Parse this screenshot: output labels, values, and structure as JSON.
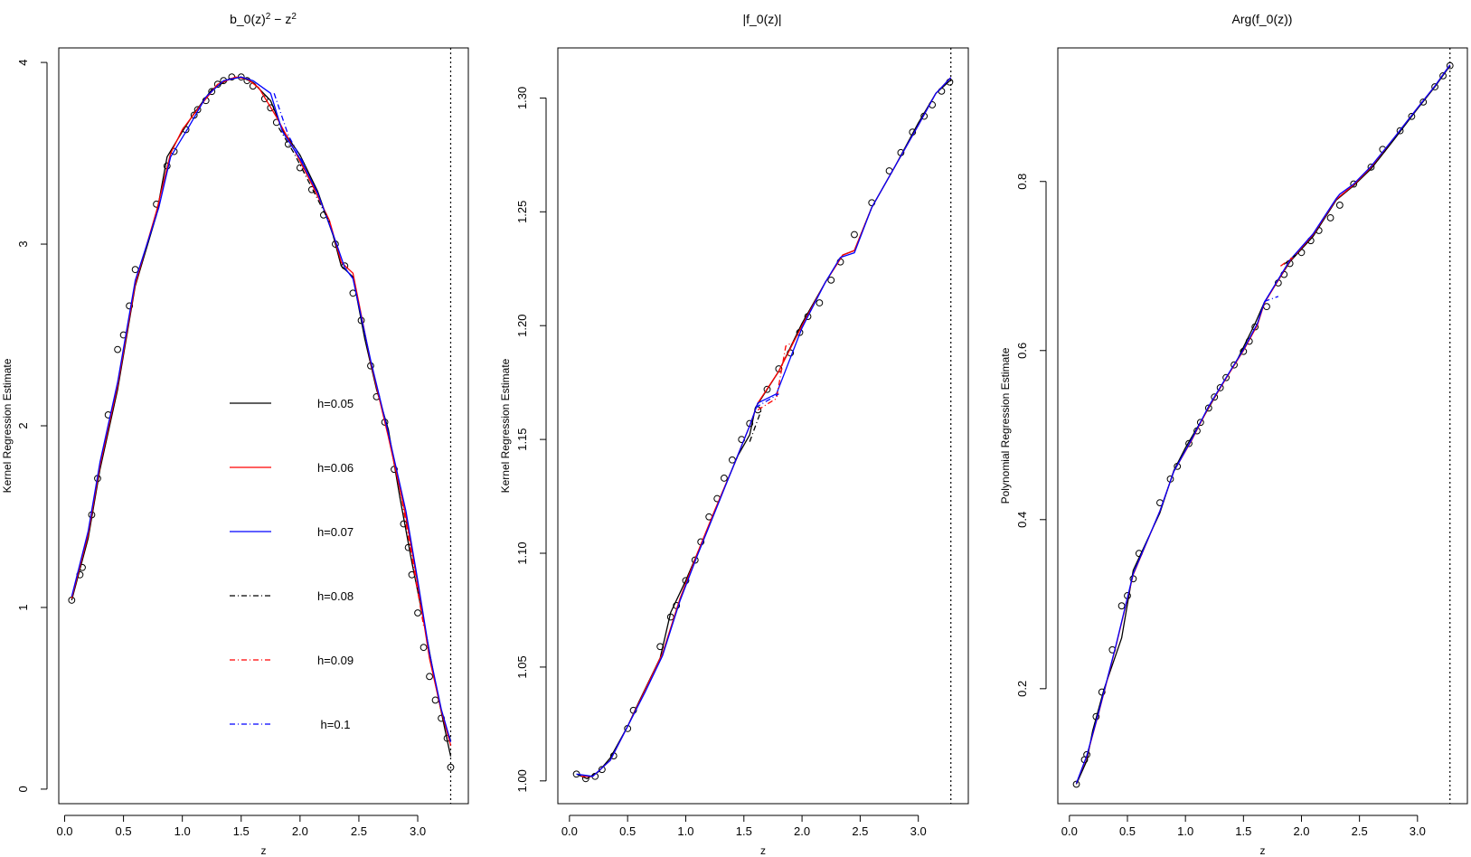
{
  "colors": {
    "h005": "#000000",
    "h006": "#ff0000",
    "h007": "#0000ff",
    "h008": "#000000",
    "h009": "#ff0000",
    "h01": "#0000ff",
    "vline": "#000000"
  },
  "chart_data": [
    {
      "type": "line",
      "title_parts": [
        "b_0(z)",
        "2",
        " − z",
        "2"
      ],
      "xlabel": "z",
      "ylabel": "Kernel Regression Estimate",
      "xlim": [
        -0.05,
        3.43
      ],
      "ylim": [
        -0.08,
        4.08
      ],
      "xticks": [
        0.0,
        0.5,
        1.0,
        1.5,
        2.0,
        2.5,
        3.0
      ],
      "xtick_labels": [
        "0.0",
        "0.5",
        "1.0",
        "1.5",
        "2.0",
        "2.5",
        "3.0"
      ],
      "yticks": [
        0,
        1,
        2,
        3,
        4
      ],
      "ytick_labels": [
        "0",
        "1",
        "2",
        "3",
        "4"
      ],
      "vline_x": 3.28,
      "legend": {
        "entries": [
          {
            "label": "h=0.05",
            "color": "#000000",
            "style": "solid"
          },
          {
            "label": "h=0.06",
            "color": "#ff0000",
            "style": "solid"
          },
          {
            "label": "h=0.07",
            "color": "#0000ff",
            "style": "solid"
          },
          {
            "label": "h=0.08",
            "color": "#000000",
            "style": "dashdot"
          },
          {
            "label": "h=0.09",
            "color": "#ff0000",
            "style": "dashdot"
          },
          {
            "label": "h=0.1",
            "color": "#0000ff",
            "style": "dashdot"
          }
        ]
      },
      "points": {
        "x": [
          0.06,
          0.13,
          0.15,
          0.23,
          0.28,
          0.37,
          0.45,
          0.5,
          0.55,
          0.6,
          0.78,
          0.87,
          0.93,
          1.03,
          1.1,
          1.13,
          1.2,
          1.25,
          1.3,
          1.35,
          1.42,
          1.5,
          1.55,
          1.6,
          1.7,
          1.75,
          1.8,
          1.9,
          2.0,
          2.1,
          2.2,
          2.3,
          2.38,
          2.45,
          2.52,
          2.6,
          2.65,
          2.72,
          2.8,
          2.88,
          2.92,
          2.95,
          3.0,
          3.05,
          3.1,
          3.15,
          3.2,
          3.25,
          3.28
        ],
        "y": [
          1.04,
          1.18,
          1.22,
          1.51,
          1.71,
          2.06,
          2.42,
          2.5,
          2.66,
          2.86,
          3.22,
          3.43,
          3.51,
          3.63,
          3.71,
          3.74,
          3.79,
          3.84,
          3.88,
          3.9,
          3.92,
          3.92,
          3.9,
          3.87,
          3.8,
          3.75,
          3.67,
          3.55,
          3.42,
          3.3,
          3.16,
          3.0,
          2.88,
          2.73,
          2.58,
          2.33,
          2.16,
          2.02,
          1.76,
          1.46,
          1.33,
          1.18,
          0.97,
          0.78,
          0.62,
          0.49,
          0.39,
          0.28,
          0.12
        ]
      },
      "series": [
        {
          "name": "h=0.05",
          "color": "#000000",
          "dash": "",
          "x": [
            0.06,
            0.2,
            0.3,
            0.45,
            0.6,
            0.78,
            0.87,
            1.0,
            1.1,
            1.25,
            1.4,
            1.5,
            1.6,
            1.75,
            1.85,
            2.0,
            2.15,
            2.28,
            2.35,
            2.45,
            2.55,
            2.65,
            2.75,
            2.85,
            2.95,
            3.05,
            3.15,
            3.25,
            3.28
          ],
          "y": [
            1.04,
            1.38,
            1.76,
            2.2,
            2.77,
            3.16,
            3.48,
            3.62,
            3.72,
            3.85,
            3.91,
            3.92,
            3.89,
            3.79,
            3.63,
            3.49,
            3.29,
            3.05,
            2.88,
            2.82,
            2.48,
            2.2,
            1.98,
            1.6,
            1.25,
            0.93,
            0.58,
            0.27,
            0.18
          ]
        },
        {
          "name": "h=0.06",
          "color": "#ff0000",
          "dash": "",
          "x": [
            0.06,
            0.2,
            0.3,
            0.45,
            0.6,
            0.78,
            0.9,
            1.0,
            1.15,
            1.3,
            1.45,
            1.55,
            1.65,
            1.8,
            1.95,
            2.1,
            2.25,
            2.35,
            2.45,
            2.6,
            2.75,
            2.9,
            3.0,
            3.1,
            3.2,
            3.28
          ],
          "y": [
            1.05,
            1.4,
            1.78,
            2.22,
            2.78,
            3.18,
            3.5,
            3.63,
            3.76,
            3.88,
            3.92,
            3.91,
            3.86,
            3.7,
            3.52,
            3.33,
            3.13,
            2.9,
            2.84,
            2.35,
            1.94,
            1.5,
            1.13,
            0.72,
            0.43,
            0.24
          ]
        },
        {
          "name": "h=0.07",
          "color": "#0000ff",
          "dash": "",
          "x": [
            0.06,
            0.2,
            0.3,
            0.45,
            0.6,
            0.8,
            0.9,
            1.05,
            1.2,
            1.35,
            1.5,
            1.6,
            1.75,
            1.85,
            2.0,
            2.15,
            2.3,
            2.38,
            2.45,
            2.6,
            2.75,
            2.9,
            3.0,
            3.1,
            3.2,
            3.28
          ],
          "y": [
            1.06,
            1.42,
            1.8,
            2.24,
            2.8,
            3.2,
            3.48,
            3.64,
            3.81,
            3.9,
            3.92,
            3.9,
            3.83,
            3.62,
            3.47,
            3.28,
            3.02,
            2.87,
            2.81,
            2.36,
            1.96,
            1.53,
            1.15,
            0.75,
            0.44,
            0.26
          ]
        },
        {
          "name": "h=0.08",
          "color": "#000000",
          "dash": "6 3 1 3",
          "x": [
            1.82,
            1.95,
            2.1,
            2.25
          ],
          "y": [
            3.64,
            3.5,
            3.31,
            3.12
          ]
        },
        {
          "name": "h=0.09",
          "color": "#ff0000",
          "dash": "6 3 1 3",
          "x": [
            2.85,
            2.95,
            3.05
          ],
          "y": [
            1.65,
            1.28,
            0.9
          ]
        },
        {
          "name": "h=0.1",
          "color": "#0000ff",
          "dash": "6 3 1 3",
          "x": [
            1.78,
            1.9,
            2.05
          ],
          "y": [
            3.83,
            3.6,
            3.42
          ]
        }
      ]
    },
    {
      "type": "line",
      "title_parts": [
        "|f_0(z)|"
      ],
      "xlabel": "z",
      "ylabel": "Kernel Regression Estimate",
      "xlim": [
        -0.1,
        3.43
      ],
      "ylim": [
        0.99,
        1.322
      ],
      "xticks": [
        0.0,
        0.5,
        1.0,
        1.5,
        2.0,
        2.5,
        3.0
      ],
      "xtick_labels": [
        "0.0",
        "0.5",
        "1.0",
        "1.5",
        "2.0",
        "2.5",
        "3.0"
      ],
      "yticks": [
        1.0,
        1.05,
        1.1,
        1.15,
        1.2,
        1.25,
        1.3
      ],
      "ytick_labels": [
        "1.00",
        "1.05",
        "1.10",
        "1.15",
        "1.20",
        "1.25",
        "1.30"
      ],
      "vline_x": 3.28,
      "points": {
        "x": [
          0.06,
          0.14,
          0.22,
          0.28,
          0.38,
          0.5,
          0.55,
          0.78,
          0.87,
          0.92,
          1.0,
          1.08,
          1.13,
          1.2,
          1.27,
          1.33,
          1.4,
          1.48,
          1.55,
          1.62,
          1.7,
          1.8,
          1.9,
          1.98,
          2.05,
          2.15,
          2.25,
          2.33,
          2.45,
          2.6,
          2.75,
          2.85,
          2.95,
          3.05,
          3.12,
          3.2,
          3.27
        ],
        "y": [
          1.003,
          1.001,
          1.002,
          1.005,
          1.011,
          1.023,
          1.031,
          1.059,
          1.072,
          1.077,
          1.088,
          1.097,
          1.105,
          1.116,
          1.124,
          1.133,
          1.141,
          1.15,
          1.157,
          1.163,
          1.172,
          1.181,
          1.188,
          1.197,
          1.204,
          1.21,
          1.22,
          1.228,
          1.24,
          1.254,
          1.268,
          1.276,
          1.285,
          1.292,
          1.297,
          1.303,
          1.307
        ]
      },
      "series": [
        {
          "name": "h=0.05",
          "color": "#000000",
          "dash": "",
          "x": [
            0.06,
            0.15,
            0.25,
            0.35,
            0.5,
            0.6,
            0.78,
            0.87,
            1.0,
            1.15,
            1.3,
            1.45,
            1.55,
            1.6,
            1.8,
            2.0,
            2.2,
            2.35,
            2.45,
            2.6,
            2.8,
            3.0,
            3.15,
            3.28
          ],
          "y": [
            1.003,
            1.001,
            1.004,
            1.01,
            1.024,
            1.035,
            1.054,
            1.074,
            1.088,
            1.106,
            1.125,
            1.143,
            1.152,
            1.164,
            1.18,
            1.201,
            1.219,
            1.231,
            1.233,
            1.252,
            1.27,
            1.289,
            1.302,
            1.308
          ]
        },
        {
          "name": "h=0.06",
          "color": "#ff0000",
          "dash": "",
          "x": [
            0.1,
            0.2,
            0.35,
            0.5,
            0.65,
            0.8,
            0.95,
            1.1,
            1.25,
            1.4,
            1.55,
            1.62,
            1.8,
            2.0,
            2.2,
            2.35,
            2.45,
            2.6,
            2.8,
            3.0,
            3.15,
            3.28
          ],
          "y": [
            1.002,
            1.002,
            1.009,
            1.024,
            1.04,
            1.056,
            1.08,
            1.1,
            1.119,
            1.137,
            1.156,
            1.166,
            1.18,
            1.2,
            1.219,
            1.231,
            1.233,
            1.252,
            1.27,
            1.288,
            1.302,
            1.309
          ]
        },
        {
          "name": "h=0.07",
          "color": "#0000ff",
          "dash": "",
          "x": [
            0.06,
            0.2,
            0.35,
            0.5,
            0.65,
            0.8,
            0.95,
            1.1,
            1.25,
            1.4,
            1.55,
            1.62,
            1.78,
            2.0,
            2.2,
            2.33,
            2.45,
            2.6,
            2.8,
            3.0,
            3.15,
            3.28
          ],
          "y": [
            1.003,
            1.002,
            1.009,
            1.024,
            1.039,
            1.055,
            1.079,
            1.099,
            1.118,
            1.137,
            1.156,
            1.166,
            1.17,
            1.199,
            1.219,
            1.23,
            1.232,
            1.252,
            1.27,
            1.288,
            1.302,
            1.309
          ]
        },
        {
          "name": "h=0.08",
          "color": "#000000",
          "dash": "6 3 1 3",
          "x": [
            1.55,
            1.65
          ],
          "y": [
            1.149,
            1.163
          ]
        },
        {
          "name": "h=0.09",
          "color": "#ff0000",
          "dash": "6 3 1 3",
          "x": [
            1.62,
            1.78,
            1.86,
            1.93
          ],
          "y": [
            1.163,
            1.168,
            1.191,
            1.193
          ]
        },
        {
          "name": "h=0.1",
          "color": "#0000ff",
          "dash": "6 3 1 3",
          "x": [
            1.6,
            1.8
          ],
          "y": [
            1.164,
            1.17
          ]
        }
      ]
    },
    {
      "type": "line",
      "title_parts": [
        "Arg(f_0(z))"
      ],
      "xlabel": "z",
      "ylabel": "Polynomial Regression Estimate",
      "xlim": [
        -0.1,
        3.43
      ],
      "ylim": [
        0.064,
        0.958
      ],
      "xticks": [
        0.0,
        0.5,
        1.0,
        1.5,
        2.0,
        2.5,
        3.0
      ],
      "xtick_labels": [
        "0.0",
        "0.5",
        "1.0",
        "1.5",
        "2.0",
        "2.5",
        "3.0"
      ],
      "yticks": [
        0.2,
        0.4,
        0.6,
        0.8
      ],
      "ytick_labels": [
        "0.2",
        "0.4",
        "0.6",
        "0.8"
      ],
      "vline_x": 3.28,
      "points": {
        "x": [
          0.06,
          0.13,
          0.15,
          0.23,
          0.28,
          0.37,
          0.45,
          0.5,
          0.55,
          0.6,
          0.78,
          0.87,
          0.93,
          1.03,
          1.1,
          1.13,
          1.2,
          1.25,
          1.3,
          1.35,
          1.42,
          1.5,
          1.55,
          1.6,
          1.7,
          1.8,
          1.85,
          1.9,
          2.0,
          2.08,
          2.15,
          2.25,
          2.33,
          2.45,
          2.6,
          2.7,
          2.85,
          2.95,
          3.05,
          3.15,
          3.22,
          3.28
        ],
        "y": [
          0.087,
          0.116,
          0.122,
          0.167,
          0.196,
          0.246,
          0.298,
          0.31,
          0.33,
          0.36,
          0.42,
          0.448,
          0.463,
          0.49,
          0.505,
          0.515,
          0.532,
          0.545,
          0.556,
          0.568,
          0.583,
          0.599,
          0.611,
          0.628,
          0.652,
          0.68,
          0.69,
          0.703,
          0.716,
          0.73,
          0.742,
          0.757,
          0.772,
          0.797,
          0.817,
          0.838,
          0.86,
          0.877,
          0.894,
          0.912,
          0.925,
          0.937
        ]
      },
      "series": [
        {
          "name": "h=0.05",
          "color": "#000000",
          "dash": "",
          "x": [
            0.06,
            0.15,
            0.2,
            0.3,
            0.45,
            0.55,
            0.78,
            0.9,
            1.0,
            1.15,
            1.3,
            1.45,
            1.6,
            1.68,
            1.9,
            2.1,
            2.3,
            2.45,
            2.6,
            2.8,
            3.0,
            3.15,
            3.28
          ],
          "y": [
            0.087,
            0.115,
            0.15,
            0.2,
            0.26,
            0.34,
            0.408,
            0.458,
            0.485,
            0.52,
            0.556,
            0.59,
            0.632,
            0.657,
            0.705,
            0.735,
            0.778,
            0.795,
            0.815,
            0.85,
            0.886,
            0.912,
            0.937
          ]
        },
        {
          "name": "h=0.06",
          "color": "#ff0000",
          "dash": "",
          "x": [
            0.06,
            0.15,
            0.25,
            0.4,
            0.55,
            0.78,
            0.9,
            1.05,
            1.2,
            1.35,
            1.5,
            1.62,
            1.68,
            1.9,
            2.1,
            2.3,
            2.45,
            2.6,
            2.8,
            3.0,
            3.15,
            3.28
          ],
          "y": [
            0.088,
            0.12,
            0.17,
            0.25,
            0.335,
            0.41,
            0.457,
            0.493,
            0.533,
            0.567,
            0.6,
            0.63,
            0.656,
            0.706,
            0.737,
            0.779,
            0.796,
            0.817,
            0.852,
            0.887,
            0.913,
            0.938
          ]
        },
        {
          "name": "h=0.07",
          "color": "#0000ff",
          "dash": "",
          "x": [
            0.06,
            0.15,
            0.25,
            0.4,
            0.55,
            0.78,
            0.9,
            1.05,
            1.2,
            1.35,
            1.5,
            1.62,
            1.68,
            1.9,
            2.1,
            2.3,
            2.33,
            2.45,
            2.6,
            2.8,
            3.0,
            3.15,
            3.28
          ],
          "y": [
            0.088,
            0.121,
            0.171,
            0.251,
            0.336,
            0.41,
            0.457,
            0.494,
            0.534,
            0.568,
            0.601,
            0.632,
            0.657,
            0.707,
            0.738,
            0.78,
            0.785,
            0.797,
            0.818,
            0.852,
            0.887,
            0.913,
            0.938
          ]
        },
        {
          "name": "h=0.08",
          "color": "#000000",
          "dash": "6 3 1 3",
          "x": [
            1.85,
            1.95
          ],
          "y": [
            0.702,
            0.713
          ]
        },
        {
          "name": "h=0.09",
          "color": "#ff0000",
          "dash": "6 3 1 3",
          "x": [
            1.82,
            1.92
          ],
          "y": [
            0.7,
            0.71
          ]
        },
        {
          "name": "h=0.1",
          "color": "#0000ff",
          "dash": "6 3 1 3",
          "x": [
            1.68,
            1.8
          ],
          "y": [
            0.658,
            0.664
          ]
        }
      ]
    }
  ]
}
